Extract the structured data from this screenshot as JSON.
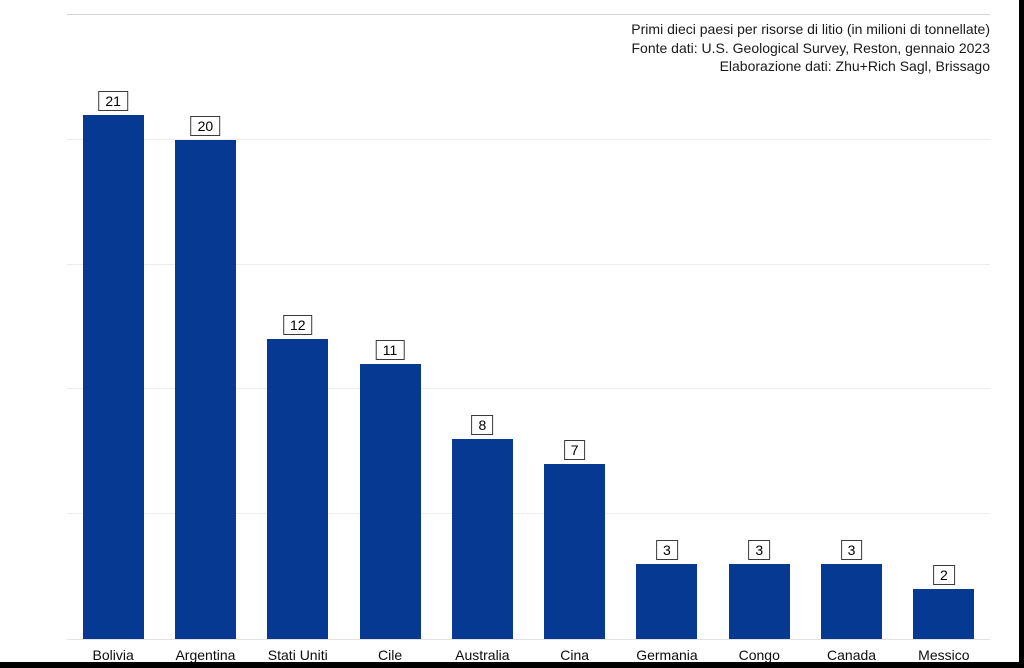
{
  "frame": {
    "background": "#ffffff",
    "right_edge_color": "#000000",
    "bottom_edge_color": "#000000"
  },
  "header": {
    "title": "Primi dieci paesi per risorse di litio (in milioni di tonnellate)",
    "source": "Fonte dati: U.S. Geological Survey, Reston, gennaio 2023",
    "credit": "Elaborazione dati: Zhu+Rich Sagl, Brissago"
  },
  "chart_data": {
    "type": "bar",
    "title": "Primi dieci paesi per risorse di litio (in milioni di tonnellate)",
    "subtitle": "Fonte dati: U.S. Geological Survey, Reston, gennaio 2023",
    "credit": "Elaborazione dati: Zhu+Rich Sagl, Brissago",
    "categories": [
      "Bolivia",
      "Argentina",
      "Stati Uniti",
      "Cile",
      "Australia",
      "Cina",
      "Germania",
      "Congo",
      "Canada",
      "Messico"
    ],
    "values": [
      21,
      20,
      12,
      11,
      8,
      7,
      3,
      3,
      3,
      2
    ],
    "value_labels_shown": true,
    "xlabel": "",
    "ylabel": "",
    "ylim": [
      0,
      25
    ],
    "gridline_values": [
      5,
      10,
      15,
      20,
      25
    ],
    "grid": true,
    "legend": false,
    "y_axis_tick_labels_shown": false,
    "bar_color": "#063a92",
    "gridline_color": "#ececec",
    "top_border_color": "#d5d5d5",
    "baseline_color": "#e2e2e2",
    "value_box_border_color": "#3a3a3a",
    "value_box_fill": "#ffffff",
    "text_color": "#1a1a1a"
  }
}
